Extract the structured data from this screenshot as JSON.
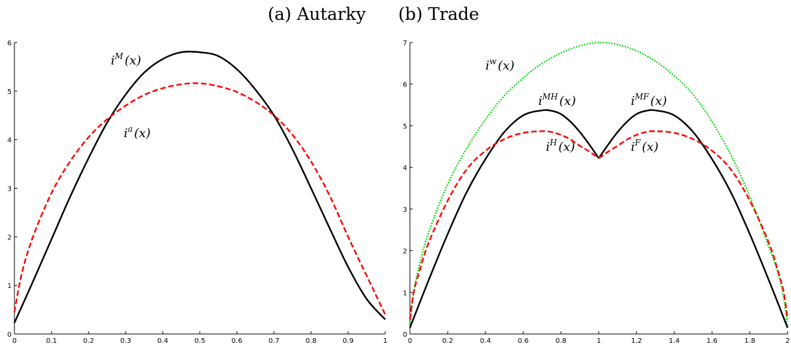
{
  "header": {
    "panel_a_title": "(a) Autarky",
    "panel_b_title": "(b) Trade"
  },
  "colors": {
    "black": "#000000",
    "red": "#ff0000",
    "green": "#00dd00"
  },
  "chart_data": [
    {
      "type": "line",
      "title": "(a) Autarky",
      "xlabel": "",
      "ylabel": "",
      "xlim": [
        0,
        1
      ],
      "ylim": [
        0,
        6
      ],
      "xticks": [
        "0",
        "0.1",
        "0.2",
        "0.3",
        "0.4",
        "0.5",
        "0.6",
        "0.7",
        "0.8",
        "0.9",
        "1"
      ],
      "yticks": [
        "0",
        "1",
        "2",
        "3",
        "4",
        "5",
        "6"
      ],
      "grid": false,
      "series": [
        {
          "name": "i^M(x)",
          "style": "solid",
          "color": "#000000",
          "x": [
            0,
            0.05,
            0.1,
            0.15,
            0.2,
            0.25,
            0.3,
            0.35,
            0.4,
            0.45,
            0.5,
            0.55,
            0.6,
            0.65,
            0.7,
            0.75,
            0.8,
            0.85,
            0.9,
            0.95,
            1
          ],
          "y": [
            0.23,
            1.08,
            1.95,
            2.82,
            3.62,
            4.35,
            4.93,
            5.38,
            5.66,
            5.8,
            5.8,
            5.72,
            5.45,
            5.03,
            4.5,
            3.8,
            3.0,
            2.18,
            1.38,
            0.72,
            0.3
          ]
        },
        {
          "name": "i^a(x)",
          "style": "dashed",
          "color": "#ff0000",
          "x": [
            0,
            0.02,
            0.05,
            0.1,
            0.15,
            0.2,
            0.25,
            0.3,
            0.35,
            0.4,
            0.45,
            0.5,
            0.55,
            0.6,
            0.65,
            0.7,
            0.75,
            0.8,
            0.85,
            0.9,
            0.95,
            0.98,
            1
          ],
          "y": [
            0.45,
            1.25,
            2.0,
            2.9,
            3.55,
            4.05,
            4.42,
            4.7,
            4.92,
            5.06,
            5.14,
            5.16,
            5.1,
            4.98,
            4.78,
            4.5,
            4.1,
            3.55,
            2.85,
            2.0,
            1.2,
            0.72,
            0.4
          ]
        }
      ],
      "annotations": [
        {
          "base": "i",
          "sup": "M",
          "tail": "(x)",
          "x": 0.26,
          "y": 5.55
        },
        {
          "base": "i",
          "sup": "a",
          "tail": "(x)",
          "x": 0.295,
          "y": 4.05
        }
      ]
    },
    {
      "type": "line",
      "title": "(b) Trade",
      "xlabel": "",
      "ylabel": "",
      "xlim": [
        0,
        2
      ],
      "ylim": [
        0,
        7
      ],
      "xticks": [
        "0",
        "0.2",
        "0.4",
        "0.6",
        "0.8",
        "1",
        "1.2",
        "1.4",
        "1.6",
        "1.8",
        "2"
      ],
      "yticks": [
        "0",
        "1",
        "2",
        "3",
        "4",
        "5",
        "6",
        "7"
      ],
      "grid": false,
      "series": [
        {
          "name": "i^w(x)",
          "style": "dotted",
          "color": "#00dd00",
          "x": [
            0,
            0.02,
            0.05,
            0.1,
            0.2,
            0.3,
            0.4,
            0.5,
            0.6,
            0.7,
            0.8,
            0.9,
            1.0,
            1.1,
            1.2,
            1.3,
            1.4,
            1.5,
            1.6,
            1.7,
            1.8,
            1.9,
            1.95,
            1.98,
            2.0
          ],
          "y": [
            0.2,
            1.0,
            1.65,
            2.45,
            3.6,
            4.45,
            5.15,
            5.72,
            6.15,
            6.5,
            6.75,
            6.92,
            7.0,
            6.95,
            6.8,
            6.55,
            6.2,
            5.75,
            5.1,
            4.3,
            3.3,
            2.1,
            1.45,
            0.85,
            0.15
          ]
        },
        {
          "name": "i^MH(x)",
          "style": "solid",
          "color": "#000000",
          "x": [
            0,
            0.1,
            0.2,
            0.3,
            0.4,
            0.5,
            0.6,
            0.7,
            0.75,
            0.8,
            0.85,
            0.9,
            0.95,
            1.0
          ],
          "y": [
            0.15,
            1.3,
            2.4,
            3.4,
            4.2,
            4.85,
            5.25,
            5.37,
            5.36,
            5.28,
            5.1,
            4.85,
            4.55,
            4.22
          ]
        },
        {
          "name": "i^MF(x)",
          "style": "solid",
          "color": "#000000",
          "x": [
            1.0,
            1.05,
            1.1,
            1.15,
            1.2,
            1.25,
            1.3,
            1.4,
            1.5,
            1.6,
            1.7,
            1.8,
            1.9,
            2.0
          ],
          "y": [
            4.22,
            4.55,
            4.85,
            5.1,
            5.28,
            5.36,
            5.37,
            5.25,
            4.85,
            4.2,
            3.4,
            2.4,
            1.3,
            0.15
          ]
        },
        {
          "name": "i^H(x)",
          "style": "dashed",
          "color": "#ff0000",
          "x": [
            0,
            0.02,
            0.05,
            0.1,
            0.2,
            0.3,
            0.4,
            0.5,
            0.6,
            0.7,
            0.75,
            0.8,
            0.85,
            0.9,
            0.95,
            1.0
          ],
          "y": [
            0.35,
            1.0,
            1.5,
            2.2,
            3.2,
            3.95,
            4.4,
            4.68,
            4.83,
            4.87,
            4.85,
            4.78,
            4.67,
            4.52,
            4.38,
            4.22
          ]
        },
        {
          "name": "i^F(x)",
          "style": "dashed",
          "color": "#ff0000",
          "x": [
            1.0,
            1.05,
            1.1,
            1.15,
            1.2,
            1.25,
            1.3,
            1.4,
            1.5,
            1.6,
            1.7,
            1.8,
            1.9,
            1.95,
            1.98,
            2.0
          ],
          "y": [
            4.22,
            4.38,
            4.52,
            4.67,
            4.78,
            4.85,
            4.87,
            4.83,
            4.68,
            4.4,
            3.95,
            3.2,
            2.2,
            1.5,
            1.0,
            0.35
          ]
        }
      ],
      "annotations": [
        {
          "base": "i",
          "sup": "w",
          "tail": "(x)",
          "x": 0.4,
          "y": 6.35
        },
        {
          "base": "i",
          "sup": "MH",
          "tail": "(x)",
          "x": 0.68,
          "y": 5.5
        },
        {
          "base": "i",
          "sup": "MF",
          "tail": "(x)",
          "x": 1.17,
          "y": 5.5
        },
        {
          "base": "i",
          "sup": "H",
          "tail": "(x)",
          "x": 0.72,
          "y": 4.4
        },
        {
          "base": "i",
          "sup": "F",
          "tail": "(x)",
          "x": 1.17,
          "y": 4.4
        }
      ]
    }
  ]
}
